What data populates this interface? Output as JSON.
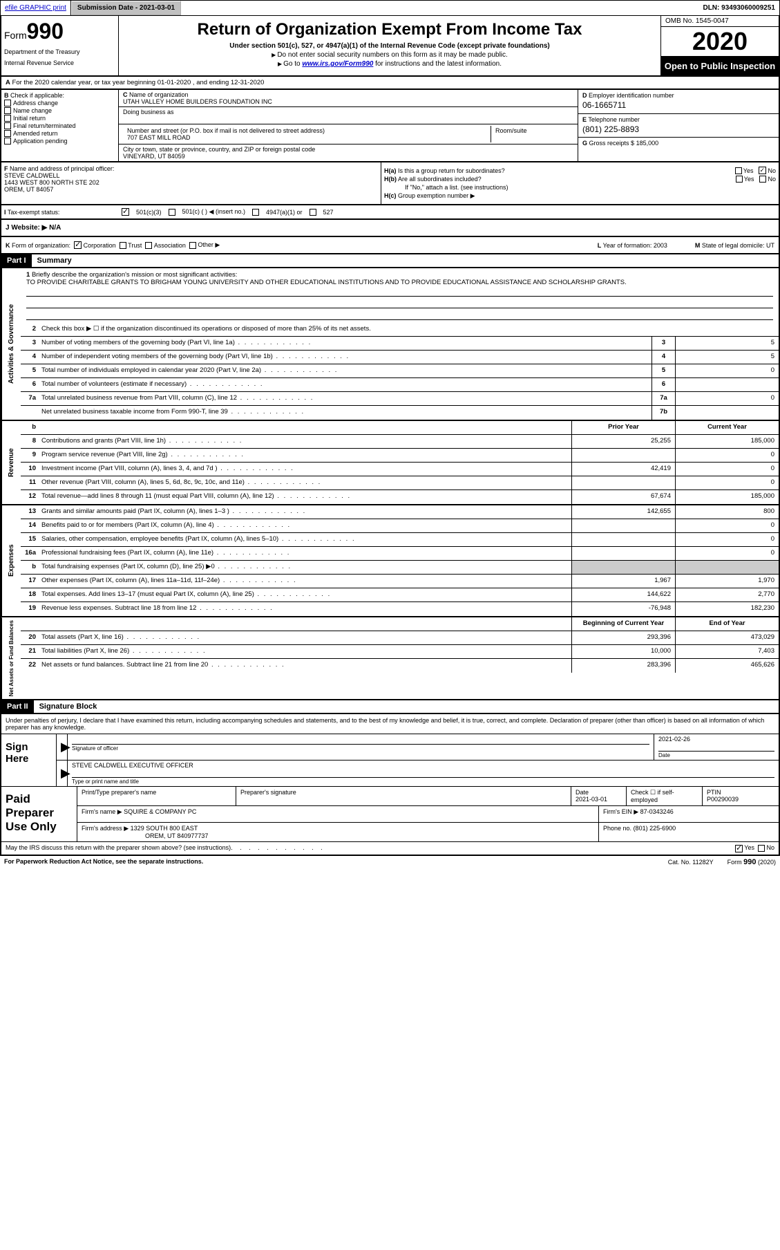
{
  "topbar": {
    "efile": "efile GRAPHIC print",
    "submission_label": "Submission Date - 2021-03-01",
    "dln": "DLN: 93493060009251"
  },
  "header": {
    "form_prefix": "Form",
    "form_number": "990",
    "dept1": "Department of the Treasury",
    "dept2": "Internal Revenue Service",
    "title": "Return of Organization Exempt From Income Tax",
    "subtitle": "Under section 501(c), 527, or 4947(a)(1) of the Internal Revenue Code (except private foundations)",
    "note1": "Do not enter social security numbers on this form as it may be made public.",
    "note2_pre": "Go to ",
    "note2_link": "www.irs.gov/Form990",
    "note2_post": " for instructions and the latest information.",
    "omb": "OMB No. 1545-0047",
    "year": "2020",
    "open": "Open to Public Inspection"
  },
  "lineA": "For the 2020 calendar year, or tax year beginning 01-01-2020     , and ending 12-31-2020",
  "checkB": {
    "label": "Check if applicable:",
    "opts": [
      "Address change",
      "Name change",
      "Initial return",
      "Final return/terminated",
      "Amended return",
      "Application pending"
    ]
  },
  "nameblock": {
    "c_label": "Name of organization",
    "c_name": "UTAH VALLEY HOME BUILDERS FOUNDATION INC",
    "dba_label": "Doing business as",
    "addr_label": "Number and street (or P.O. box if mail is not delivered to street address)",
    "room_label": "Room/suite",
    "addr": "707 EAST MILL ROAD",
    "city_label": "City or town, state or province, country, and ZIP or foreign postal code",
    "city": "VINEYARD, UT  84059"
  },
  "colD": {
    "d_label": "Employer identification number",
    "ein": "06-1665711",
    "e_label": "Telephone number",
    "phone": "(801) 225-8893",
    "g_label": "Gross receipts $",
    "gross": "185,000"
  },
  "rowF": {
    "f_label": "Name and address of principal officer:",
    "officer_name": "STEVE CALDWELL",
    "officer_addr1": "1443 WEST 800 NORTH STE 202",
    "officer_addr2": "OREM, UT  84057",
    "ha": "Is this a group return for subordinates?",
    "hb": "Are all subordinates included?",
    "hb_note": "If \"No,\" attach a list. (see instructions)",
    "hc": "Group exemption number ▶"
  },
  "taxrow": {
    "label": "Tax-exempt status:",
    "opt1": "501(c)(3)",
    "opt2": "501(c) (   ) ◀ (insert no.)",
    "opt3": "4947(a)(1) or",
    "opt4": "527"
  },
  "web": {
    "label": "Website: ▶",
    "value": "N/A"
  },
  "rowK": {
    "k_label": "Form of organization:",
    "k_opts": [
      "Corporation",
      "Trust",
      "Association",
      "Other ▶"
    ],
    "l_label": "Year of formation:",
    "l_val": "2003",
    "m_label": "State of legal domicile:",
    "m_val": "UT"
  },
  "part1": {
    "tag": "Part I",
    "title": "Summary"
  },
  "mission": {
    "q": "Briefly describe the organization's mission or most significant activities:",
    "text": "TO PROVIDE CHARITABLE GRANTS TO BRIGHAM YOUNG UNIVERSITY AND OTHER EDUCATIONAL INSTITUTIONS AND TO PROVIDE EDUCATIONAL ASSISTANCE AND SCHOLARSHIP GRANTS."
  },
  "line2": "Check this box ▶ ☐  if the organization discontinued its operations or disposed of more than 25% of its net assets.",
  "gov_lines": [
    {
      "n": "3",
      "d": "Number of voting members of the governing body (Part VI, line 1a)",
      "b": "3",
      "v": "5"
    },
    {
      "n": "4",
      "d": "Number of independent voting members of the governing body (Part VI, line 1b)",
      "b": "4",
      "v": "5"
    },
    {
      "n": "5",
      "d": "Total number of individuals employed in calendar year 2020 (Part V, line 2a)",
      "b": "5",
      "v": "0"
    },
    {
      "n": "6",
      "d": "Total number of volunteers (estimate if necessary)",
      "b": "6",
      "v": ""
    },
    {
      "n": "7a",
      "d": "Total unrelated business revenue from Part VIII, column (C), line 12",
      "b": "7a",
      "v": "0"
    },
    {
      "n": "",
      "d": "Net unrelated business taxable income from Form 990-T, line 39",
      "b": "7b",
      "v": ""
    }
  ],
  "twocol_hdr": {
    "py": "Prior Year",
    "cy": "Current Year"
  },
  "rev_lines": [
    {
      "n": "8",
      "d": "Contributions and grants (Part VIII, line 1h)",
      "py": "25,255",
      "cy": "185,000"
    },
    {
      "n": "9",
      "d": "Program service revenue (Part VIII, line 2g)",
      "py": "",
      "cy": "0"
    },
    {
      "n": "10",
      "d": "Investment income (Part VIII, column (A), lines 3, 4, and 7d )",
      "py": "42,419",
      "cy": "0"
    },
    {
      "n": "11",
      "d": "Other revenue (Part VIII, column (A), lines 5, 6d, 8c, 9c, 10c, and 11e)",
      "py": "",
      "cy": "0"
    },
    {
      "n": "12",
      "d": "Total revenue—add lines 8 through 11 (must equal Part VIII, column (A), line 12)",
      "py": "67,674",
      "cy": "185,000"
    }
  ],
  "exp_lines": [
    {
      "n": "13",
      "d": "Grants and similar amounts paid (Part IX, column (A), lines 1–3 )",
      "py": "142,655",
      "cy": "800"
    },
    {
      "n": "14",
      "d": "Benefits paid to or for members (Part IX, column (A), line 4)",
      "py": "",
      "cy": "0"
    },
    {
      "n": "15",
      "d": "Salaries, other compensation, employee benefits (Part IX, column (A), lines 5–10)",
      "py": "",
      "cy": "0"
    },
    {
      "n": "16a",
      "d": "Professional fundraising fees (Part IX, column (A), line 11e)",
      "py": "",
      "cy": "0"
    },
    {
      "n": "b",
      "d": "Total fundraising expenses (Part IX, column (D), line 25) ▶0",
      "py": "SHADE",
      "cy": "SHADE"
    },
    {
      "n": "17",
      "d": "Other expenses (Part IX, column (A), lines 11a–11d, 11f–24e)",
      "py": "1,967",
      "cy": "1,970"
    },
    {
      "n": "18",
      "d": "Total expenses. Add lines 13–17 (must equal Part IX, column (A), line 25)",
      "py": "144,622",
      "cy": "2,770"
    },
    {
      "n": "19",
      "d": "Revenue less expenses. Subtract line 18 from line 12",
      "py": "-76,948",
      "cy": "182,230"
    }
  ],
  "net_hdr": {
    "b": "Beginning of Current Year",
    "e": "End of Year"
  },
  "net_lines": [
    {
      "n": "20",
      "d": "Total assets (Part X, line 16)",
      "py": "293,396",
      "cy": "473,029"
    },
    {
      "n": "21",
      "d": "Total liabilities (Part X, line 26)",
      "py": "10,000",
      "cy": "7,403"
    },
    {
      "n": "22",
      "d": "Net assets or fund balances. Subtract line 21 from line 20",
      "py": "283,396",
      "cy": "465,626"
    }
  ],
  "part2": {
    "tag": "Part II",
    "title": "Signature Block"
  },
  "sig": {
    "jurat": "Under penalties of perjury, I declare that I have examined this return, including accompanying schedules and statements, and to the best of my knowledge and belief, it is true, correct, and complete. Declaration of preparer (other than officer) is based on all information of which preparer has any knowledge.",
    "sign_here": "Sign Here",
    "sig_officer": "Signature of officer",
    "date_label": "Date",
    "date": "2021-02-26",
    "typed": "STEVE CALDWELL  EXECUTIVE OFFICER",
    "typed_label": "Type or print name and title"
  },
  "paid": {
    "label": "Paid Preparer Use Only",
    "h1": "Print/Type preparer's name",
    "h2": "Preparer's signature",
    "h3": "Date",
    "date": "2021-03-01",
    "h4_pre": "Check ☐ if self-employed",
    "h5": "PTIN",
    "ptin": "P00290039",
    "firm_name_l": "Firm's name    ▶",
    "firm_name": "SQUIRE & COMPANY PC",
    "firm_ein_l": "Firm's EIN ▶",
    "firm_ein": "87-0343246",
    "firm_addr_l": "Firm's address ▶",
    "firm_addr1": "1329 SOUTH 800 EAST",
    "firm_addr2": "OREM, UT  840977737",
    "phone_l": "Phone no.",
    "phone": "(801) 225-6900"
  },
  "footer": {
    "q": "May the IRS discuss this return with the preparer shown above? (see instructions)",
    "paperwork": "For Paperwork Reduction Act Notice, see the separate instructions.",
    "cat": "Cat. No. 11282Y",
    "form": "Form 990 (2020)"
  },
  "side_labels": {
    "gov": "Activities & Governance",
    "rev": "Revenue",
    "exp": "Expenses",
    "net": "Net Assets or Fund Balances"
  }
}
